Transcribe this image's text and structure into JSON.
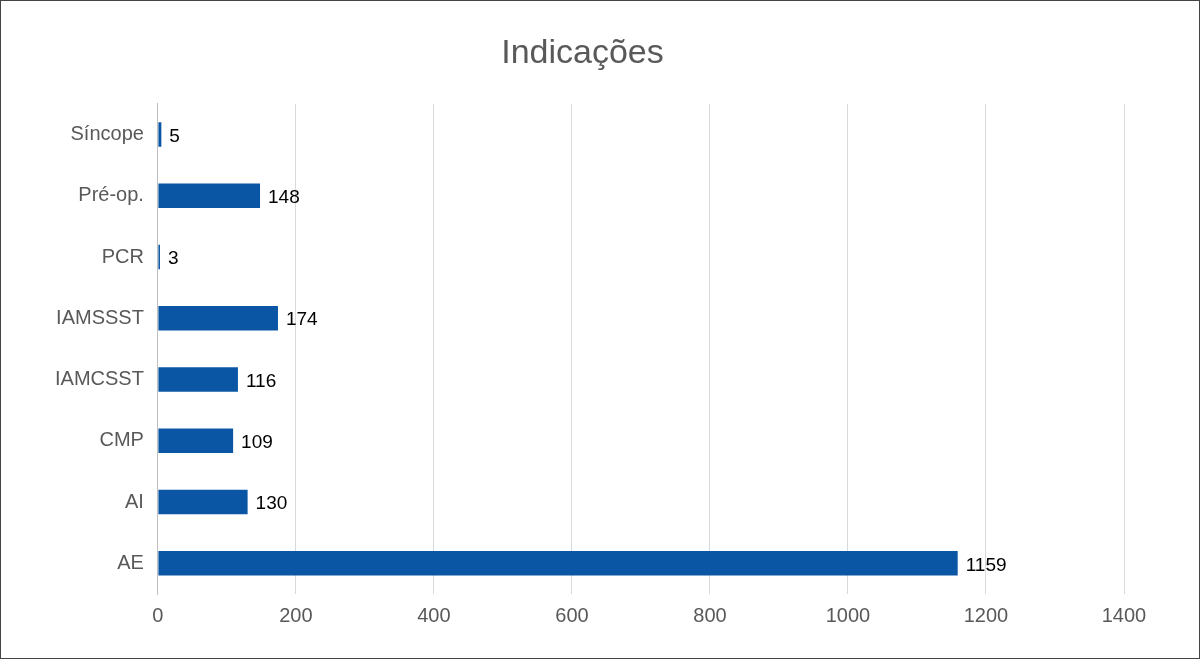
{
  "chart_data": {
    "type": "bar",
    "orientation": "horizontal",
    "title": "Indicações",
    "categories": [
      "Síncope",
      "Pré-op.",
      "PCR",
      "IAMSSST",
      "IAMCSST",
      "CMP",
      "AI",
      "AE"
    ],
    "values": [
      5,
      148,
      3,
      174,
      116,
      109,
      130,
      1159
    ],
    "color": "#0b56a4",
    "xlim": [
      0,
      1400
    ],
    "xticks": [
      0,
      200,
      400,
      600,
      800,
      1000,
      1200,
      1400
    ],
    "grid": "x",
    "legend": false,
    "data_labels": true
  }
}
